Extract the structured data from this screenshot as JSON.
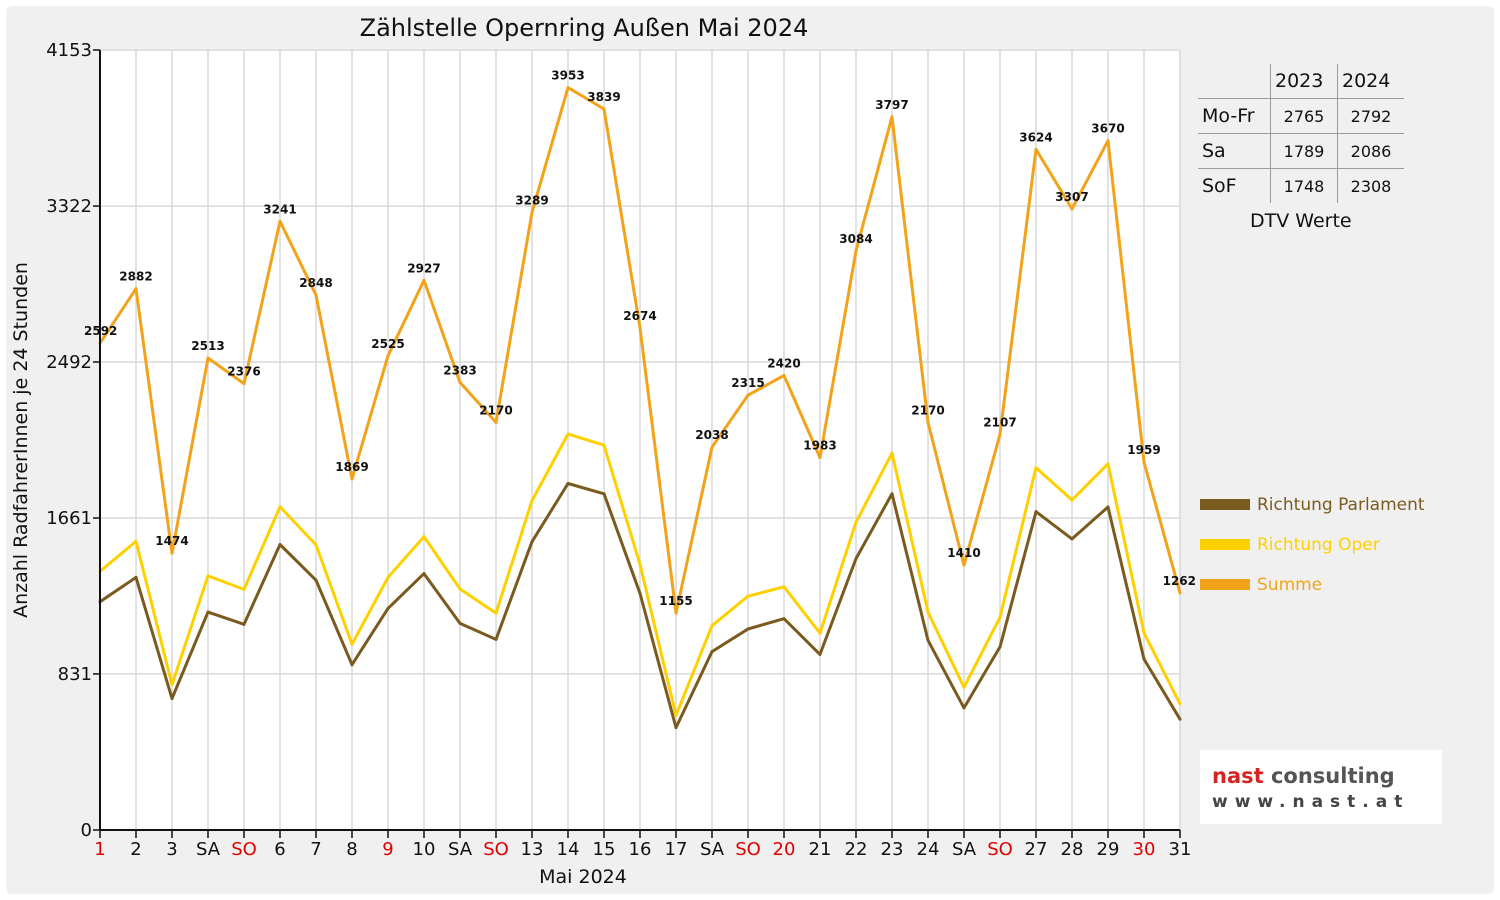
{
  "chart_data": {
    "type": "line",
    "title": "Zählstelle Opernring Außen Mai 2024",
    "xlabel": "Mai 2024",
    "ylabel": "Anzahl RadfahrerInnen je 24 Stunden",
    "ylim": [
      0,
      4153
    ],
    "yticks": [
      0,
      831,
      1661,
      2492,
      3322,
      4153
    ],
    "grid": true,
    "legend_position": "right",
    "categories": [
      "1",
      "2",
      "3",
      "SA",
      "SO",
      "6",
      "7",
      "8",
      "9",
      "10",
      "SA",
      "SO",
      "13",
      "14",
      "15",
      "16",
      "17",
      "SA",
      "SO",
      "20",
      "21",
      "22",
      "23",
      "24",
      "SA",
      "SO",
      "27",
      "28",
      "29",
      "30",
      "31"
    ],
    "category_colors": [
      "#e00000",
      "#111111",
      "#111111",
      "#111111",
      "#e00000",
      "#111111",
      "#111111",
      "#111111",
      "#e00000",
      "#111111",
      "#111111",
      "#e00000",
      "#111111",
      "#111111",
      "#111111",
      "#111111",
      "#111111",
      "#111111",
      "#e00000",
      "#e00000",
      "#111111",
      "#111111",
      "#111111",
      "#111111",
      "#111111",
      "#e00000",
      "#111111",
      "#111111",
      "#111111",
      "#e00000",
      "#111111"
    ],
    "series": [
      {
        "name": "Richtung Parlament",
        "color": "#7a5a1e",
        "values": [
          1215,
          1345,
          700,
          1160,
          1095,
          1520,
          1330,
          880,
          1180,
          1365,
          1100,
          1015,
          1535,
          1845,
          1790,
          1260,
          545,
          950,
          1070,
          1125,
          935,
          1445,
          1790,
          1010,
          650,
          975,
          1695,
          1550,
          1720,
          910,
          590
        ]
      },
      {
        "name": "Richtung Oper",
        "color": "#ffd000",
        "values": [
          1377,
          1537,
          774,
          1353,
          1281,
          1721,
          1518,
          989,
          1345,
          1562,
          1283,
          1155,
          1754,
          2108,
          2049,
          1414,
          610,
          1088,
          1245,
          1295,
          1048,
          1639,
          2007,
          1160,
          760,
          1132,
          1929,
          1757,
          1950,
          1049,
          672
        ]
      },
      {
        "name": "Summe",
        "color": "#f2a31a",
        "values": [
          2592,
          2882,
          1474,
          2513,
          2376,
          3241,
          2848,
          1869,
          2525,
          2927,
          2383,
          2170,
          3289,
          3953,
          3839,
          2674,
          1155,
          2038,
          2315,
          2420,
          1983,
          3084,
          3797,
          2170,
          1410,
          2107,
          3624,
          3307,
          3670,
          1959,
          1262
        ],
        "labels": [
          "2592",
          "2882",
          "1474",
          "2513",
          "2376",
          "3241",
          "2848",
          "1869",
          "2525",
          "2927",
          "2383",
          "2170",
          "3289",
          "3953",
          "3839",
          "2674",
          "1155",
          "2038",
          "2315",
          "2420",
          "1983",
          "3084",
          "3797",
          "2170",
          "1410",
          "2107",
          "3624",
          "3307",
          "3670",
          "1959",
          "1262"
        ]
      }
    ]
  },
  "dtv_table": {
    "columns": [
      "2023",
      "2024"
    ],
    "rows": [
      {
        "label": "Mo-Fr",
        "v2023": "2765",
        "v2024": "2792"
      },
      {
        "label": "Sa",
        "v2023": "1789",
        "v2024": "2086"
      },
      {
        "label": "SoF",
        "v2023": "1748",
        "v2024": "2308"
      }
    ],
    "caption": "DTV Werte"
  },
  "logo": {
    "name_part1": "nast",
    "name_part2": " consulting",
    "url": "www.nast.at"
  }
}
